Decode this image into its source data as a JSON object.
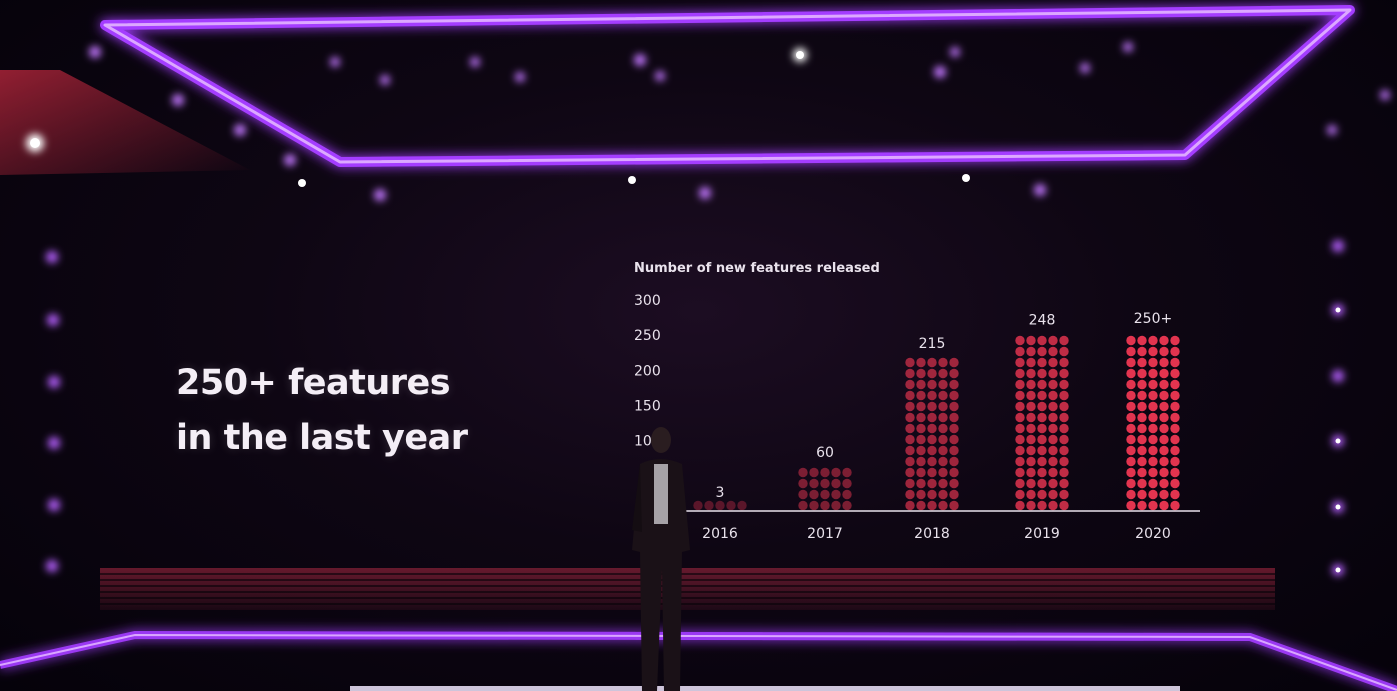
{
  "slide": {
    "headline_line_1": "250+ features",
    "headline_line_2": "in the last year"
  },
  "colors": {
    "stage_frame": "#a43cff",
    "bar_fill": "#e2344f",
    "headline": "#f4eef6",
    "background": "#07030d"
  },
  "chart_data": {
    "type": "bar",
    "title": "Number of new features released",
    "xlabel": "",
    "ylabel": "",
    "categories": [
      "2016",
      "2017",
      "2018",
      "2019",
      "2020"
    ],
    "values": [
      3,
      60,
      215,
      248,
      250
    ],
    "data_labels": [
      "3",
      "60",
      "215",
      "248",
      "250+"
    ],
    "y_ticks": [
      "100",
      "150",
      "200",
      "250",
      "300"
    ],
    "ylim": [
      0,
      300
    ],
    "grid": false,
    "legend": "none",
    "bar_style": "dotted"
  }
}
